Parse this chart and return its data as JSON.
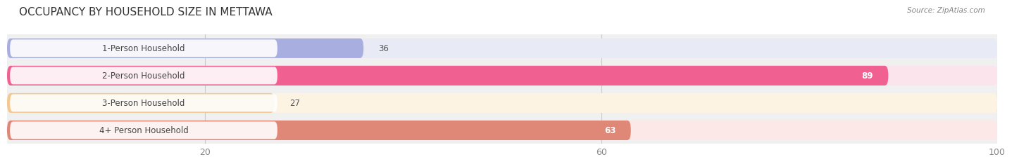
{
  "title": "OCCUPANCY BY HOUSEHOLD SIZE IN METTAWA",
  "source": "Source: ZipAtlas.com",
  "categories": [
    "1-Person Household",
    "2-Person Household",
    "3-Person Household",
    "4+ Person Household"
  ],
  "values": [
    36,
    89,
    27,
    63
  ],
  "bar_colors": [
    "#a8aee0",
    "#f06090",
    "#f5c890",
    "#e08878"
  ],
  "bar_bg_colors": [
    "#e8eaf6",
    "#fce4ec",
    "#fdf3e3",
    "#fce8e6"
  ],
  "xlim": [
    0,
    100
  ],
  "xticks": [
    20,
    60,
    100
  ],
  "figsize": [
    14.06,
    2.33
  ],
  "dpi": 100,
  "background_color": "#ffffff",
  "bar_area_bg": "#f0f0f0",
  "title_fontsize": 11,
  "label_fontsize": 8.5,
  "tick_fontsize": 9
}
